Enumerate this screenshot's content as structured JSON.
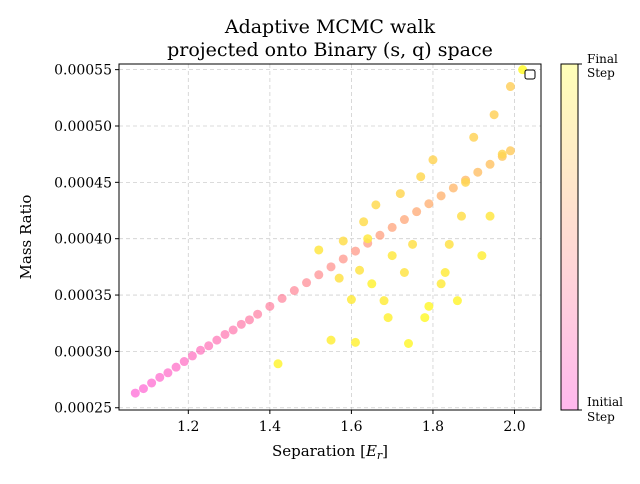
{
  "chart_data": {
    "type": "scatter",
    "title": [
      "Adaptive MCMC walk",
      "projected onto Binary (s, q) space"
    ],
    "xlabel_text": "Separation [",
    "xlabel_math": "E",
    "xlabel_sub": "r",
    "xlabel_close": "]",
    "ylabel": "Mass Ratio",
    "xlim": [
      1.03,
      2.065
    ],
    "ylim": [
      0.000248,
      0.000555
    ],
    "x_ticks": [
      1.2,
      1.4,
      1.6,
      1.8,
      2.0
    ],
    "x_tick_labels": [
      "1.2",
      "1.4",
      "1.6",
      "1.8",
      "2.0"
    ],
    "y_ticks": [
      0.00025,
      0.0003,
      0.00035,
      0.0004,
      0.00045,
      0.0005,
      0.00055
    ],
    "y_tick_labels": [
      "0.00025",
      "0.00030",
      "0.00035",
      "0.00040",
      "0.00045",
      "0.00050",
      "0.00055"
    ],
    "grid": true,
    "legend": "top-right (empty)",
    "colormap": {
      "start": "#ff33cc",
      "end": "#ffff33"
    },
    "colorbar": {
      "top_label": [
        "Final",
        "Step"
      ],
      "bottom_label": [
        "Initial",
        "Step"
      ]
    },
    "series": [
      {
        "x": [
          1.07,
          1.09,
          1.11,
          1.13,
          1.15,
          1.17,
          1.19,
          1.21,
          1.23,
          1.25,
          1.27,
          1.29,
          1.31,
          1.33,
          1.35,
          1.37,
          1.4,
          1.43,
          1.46,
          1.49,
          1.52,
          1.55,
          1.58,
          1.61,
          1.64,
          1.67,
          1.7,
          1.73,
          1.76,
          1.79,
          1.82,
          1.85,
          1.88,
          1.91,
          1.94,
          1.97,
          1.99
        ],
        "y": [
          0.000263,
          0.000267,
          0.000272,
          0.000277,
          0.000281,
          0.000286,
          0.000291,
          0.000296,
          0.000301,
          0.000305,
          0.00031,
          0.000315,
          0.000319,
          0.000324,
          0.000328,
          0.000333,
          0.00034,
          0.000347,
          0.000354,
          0.000361,
          0.000368,
          0.000375,
          0.000382,
          0.000389,
          0.000396,
          0.000403,
          0.00041,
          0.000417,
          0.000424,
          0.000431,
          0.000438,
          0.000445,
          0.000452,
          0.000459,
          0.000466,
          0.000473,
          0.000478
        ],
        "step": [
          0.02,
          0.04,
          0.06,
          0.08,
          0.1,
          0.12,
          0.14,
          0.16,
          0.18,
          0.2,
          0.22,
          0.24,
          0.26,
          0.28,
          0.3,
          0.32,
          0.34,
          0.36,
          0.38,
          0.4,
          0.42,
          0.44,
          0.46,
          0.48,
          0.5,
          0.52,
          0.54,
          0.56,
          0.58,
          0.6,
          0.62,
          0.64,
          0.66,
          0.68,
          0.7,
          0.72,
          0.74
        ]
      },
      {
        "x": [
          1.42,
          1.52,
          1.55,
          1.57,
          1.58,
          1.6,
          1.61,
          1.62,
          1.63,
          1.65,
          1.66,
          1.68,
          1.7,
          1.72,
          1.74,
          1.75,
          1.77,
          1.78,
          1.8,
          1.82,
          1.84,
          1.86,
          1.88,
          1.9,
          1.92,
          1.95,
          1.97,
          1.99,
          2.02,
          1.94,
          1.87,
          1.83,
          1.79,
          1.73,
          1.69,
          1.64
        ],
        "y": [
          0.000289,
          0.00039,
          0.00031,
          0.000365,
          0.000398,
          0.000346,
          0.000308,
          0.000372,
          0.000415,
          0.00036,
          0.00043,
          0.000345,
          0.000385,
          0.00044,
          0.000307,
          0.000395,
          0.000455,
          0.00033,
          0.00047,
          0.00036,
          0.000395,
          0.000345,
          0.00045,
          0.00049,
          0.000385,
          0.00051,
          0.000475,
          0.000535,
          0.00055,
          0.00042,
          0.00042,
          0.00037,
          0.00034,
          0.00037,
          0.00033,
          0.0004
        ],
        "step": [
          0.95,
          0.88,
          0.92,
          0.86,
          0.84,
          0.9,
          0.93,
          0.87,
          0.83,
          0.94,
          0.82,
          0.91,
          0.89,
          0.8,
          0.96,
          0.85,
          0.81,
          0.97,
          0.79,
          0.9,
          0.86,
          0.95,
          0.8,
          0.78,
          0.92,
          0.77,
          0.8,
          0.76,
          0.98,
          0.88,
          0.84,
          0.9,
          0.96,
          0.87,
          0.93,
          0.89
        ]
      }
    ]
  }
}
